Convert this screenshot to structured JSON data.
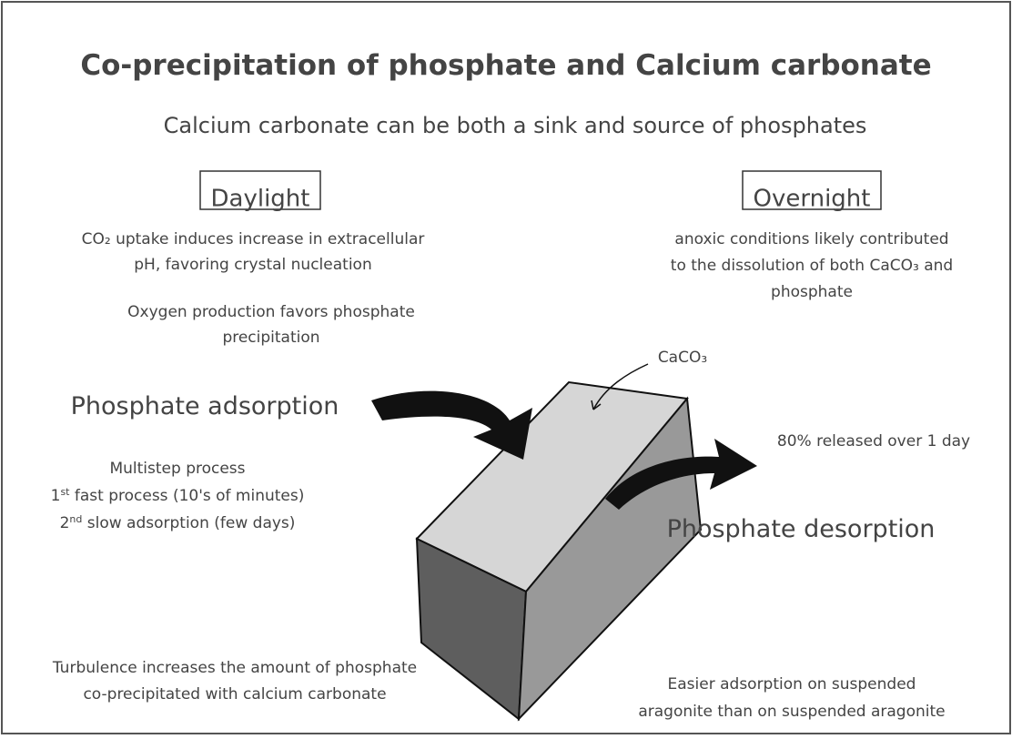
{
  "title": "Co-precipitation of phosphate and Calcium carbonate",
  "subtitle": "Calcium carbonate can be both a sink and source of phosphates",
  "daylight": {
    "label": "Daylight",
    "notes": [
      [
        "CO₂ uptake induces increase in extracellular",
        "pH, favoring crystal nucleation"
      ],
      [
        "Oxygen production favors phosphate",
        "precipitation"
      ]
    ]
  },
  "overnight": {
    "label": "Overnight",
    "notes": [
      [
        "anoxic conditions likely contributed",
        "to the dissolution of both CaCO₃ and",
        "phosphate"
      ]
    ]
  },
  "diagram": {
    "material": "CaCO₃"
  },
  "adsorption": {
    "heading": "Phosphate adsorption",
    "lines": [
      {
        "text": "Multistep process"
      },
      {
        "num": "1",
        "sup": "st",
        "text": " fast process (10's of minutes)"
      },
      {
        "num": "2",
        "sup": "nd",
        "text": " slow adsorption (few days)"
      }
    ]
  },
  "desorption": {
    "release": "80% released over 1 day",
    "heading": "Phosphate desorption"
  },
  "footer": {
    "turbulence": [
      "Turbulence increases the amount of phosphate",
      "co-precipitated with calcium carbonate"
    ],
    "suspension": [
      "Easier adsorption on suspended",
      "aragonite than on suspended aragonite"
    ]
  }
}
